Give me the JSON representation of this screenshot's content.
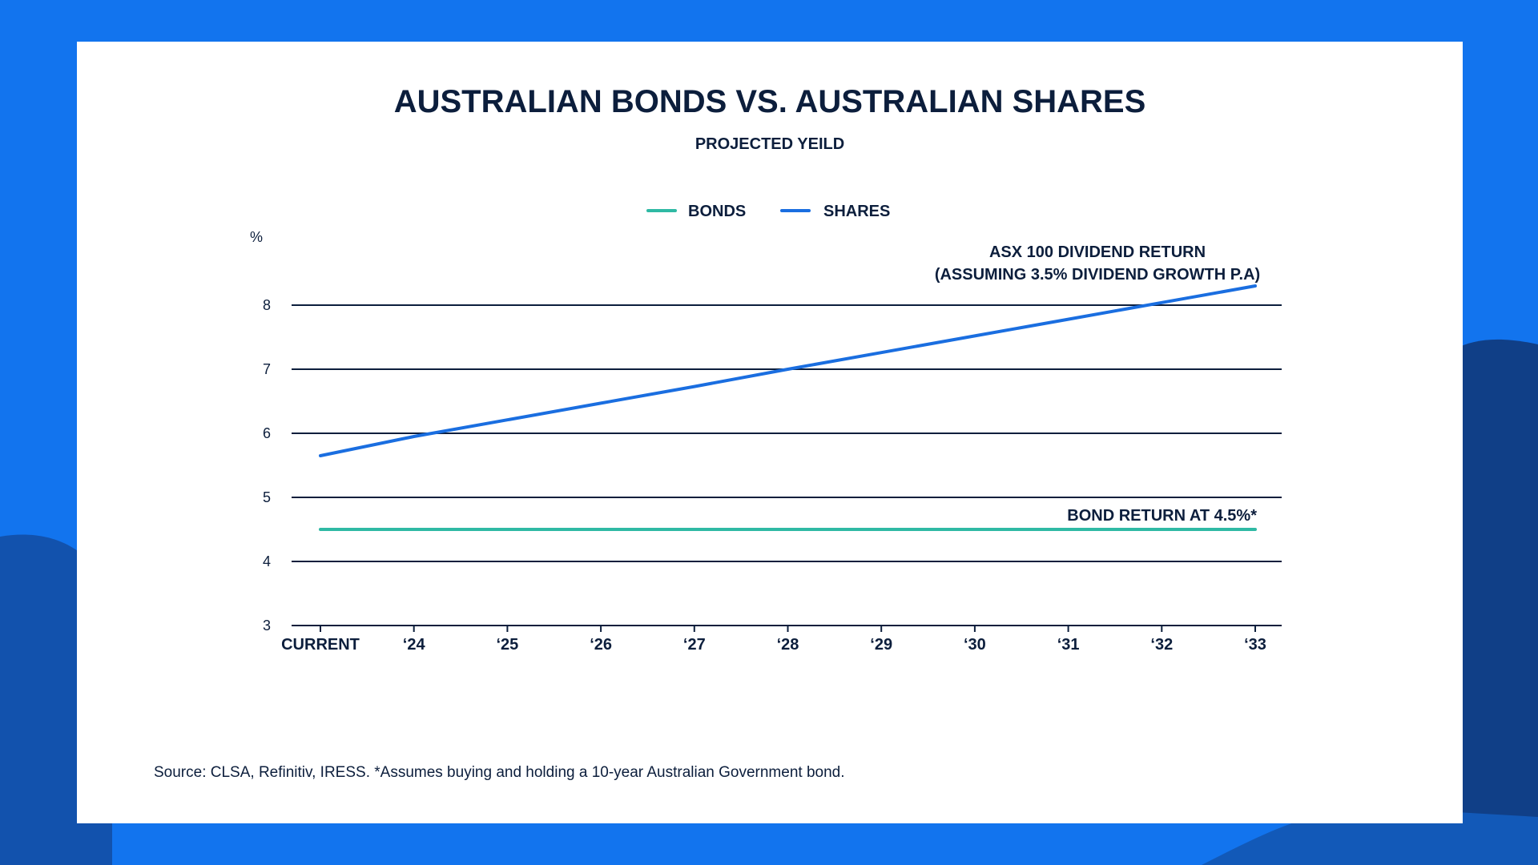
{
  "chart_data": {
    "type": "line",
    "title": "AUSTRALIAN BONDS VS. AUSTRALIAN SHARES",
    "subtitle": "PROJECTED YEILD",
    "ylabel": "%",
    "ylim": [
      3,
      8.5
    ],
    "yticks": [
      3,
      4,
      5,
      6,
      7,
      8
    ],
    "categories": [
      "CURRENT",
      "‘24",
      "‘25",
      "‘26",
      "‘27",
      "‘28",
      "‘29",
      "‘30",
      "‘31",
      "‘32",
      "‘33"
    ],
    "grid": true,
    "legend_position": "top-center",
    "series": [
      {
        "name": "BONDS",
        "color": "#2fb9a4",
        "values": [
          4.5,
          4.5,
          4.5,
          4.5,
          4.5,
          4.5,
          4.5,
          4.5,
          4.5,
          4.5,
          4.5
        ],
        "annotation": "BOND RETURN AT 4.5%*"
      },
      {
        "name": "SHARES",
        "color": "#1a6ee0",
        "values": [
          5.65,
          5.95,
          6.21,
          6.47,
          6.73,
          7.0,
          7.26,
          7.52,
          7.78,
          8.04,
          8.3
        ],
        "annotation_line1": "ASX 100 DIVIDEND RETURN",
        "annotation_line2": "(ASSUMING 3.5% DIVIDEND GROWTH P.A)"
      }
    ],
    "source": "Source: CLSA, Refinitiv, IRESS. *Assumes buying and holding a 10-year Australian Government bond."
  }
}
